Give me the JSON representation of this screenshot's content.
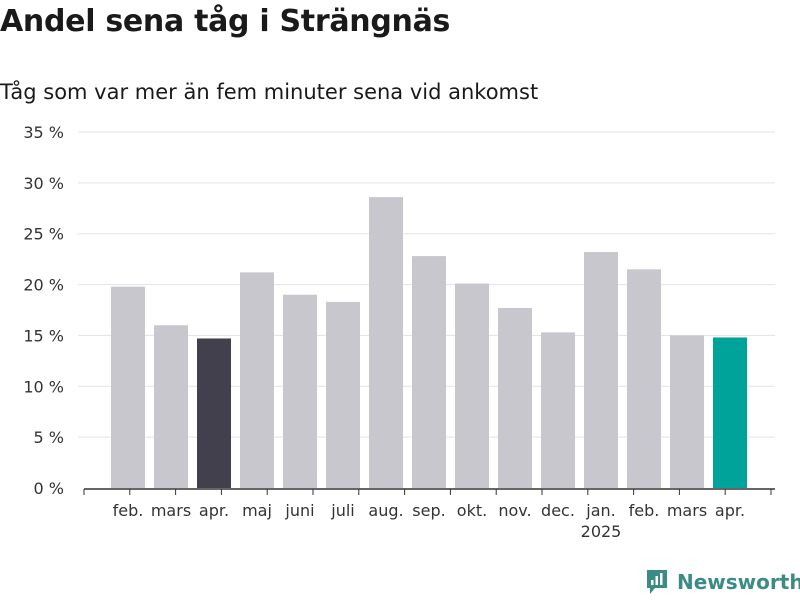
{
  "title": "Andel sena tåg i Strängnäs",
  "subtitle": "Tåg som var mer än fem minuter sena vid ankomst",
  "brand": {
    "name": "Newsworthy",
    "color": "#3b8c85"
  },
  "chart_data": {
    "type": "bar",
    "categories": [
      "feb.",
      "mars",
      "apr.",
      "maj",
      "juni",
      "juli",
      "aug.",
      "sep.",
      "okt.",
      "nov.",
      "dec.",
      "jan.",
      "feb.",
      "mars",
      "apr."
    ],
    "year_labels": [
      {
        "index": 11,
        "label": "2025"
      }
    ],
    "values": [
      19.8,
      16.0,
      14.7,
      21.2,
      19.0,
      18.3,
      28.6,
      22.8,
      20.1,
      17.7,
      15.3,
      23.2,
      21.5,
      15.0,
      14.8
    ],
    "bar_colors": [
      "#c8c7ce",
      "#c8c7ce",
      "#42404c",
      "#c8c7ce",
      "#c8c7ce",
      "#c8c7ce",
      "#c8c7ce",
      "#c8c7ce",
      "#c8c7ce",
      "#c8c7ce",
      "#c8c7ce",
      "#c8c7ce",
      "#c8c7ce",
      "#c8c7ce",
      "#00a39a"
    ],
    "yticks": [
      "0 %",
      "5 %",
      "10 %",
      "15 %",
      "20 %",
      "25 %",
      "30 %",
      "35 %"
    ],
    "ylim": [
      0,
      35
    ],
    "grid": true,
    "xlabel": "",
    "ylabel": ""
  }
}
